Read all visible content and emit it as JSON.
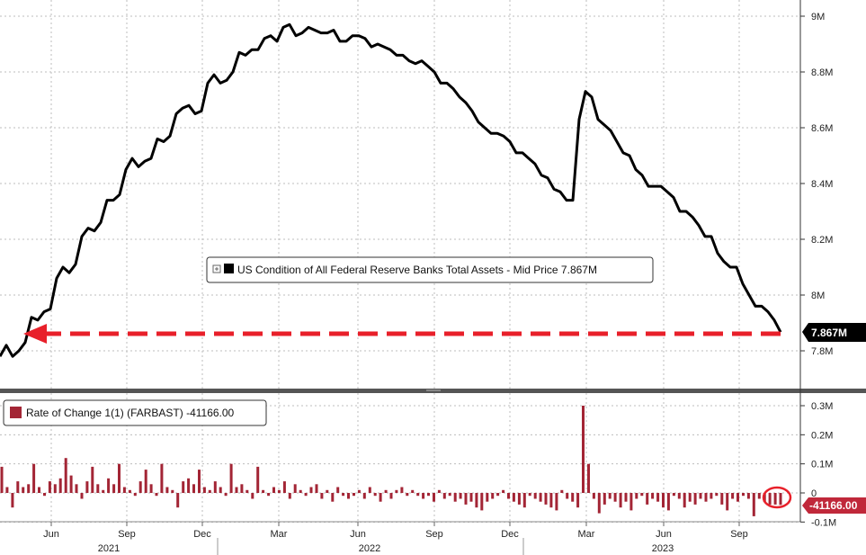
{
  "chart_data": [
    {
      "type": "line",
      "ylim": [
        7.72,
        9.03
      ],
      "y_ticks": [
        "9M",
        "8.8M",
        "8.6M",
        "8.4M",
        "8.2M",
        "8M",
        "7.8M"
      ],
      "y_tick_values": [
        9.0,
        8.8,
        8.6,
        8.4,
        8.2,
        8.0,
        7.8
      ],
      "legend": "US Condition of All Federal Reserve Banks Total Assets - Mid Price 7.867M",
      "last_value_label": "7.867M",
      "grid": true,
      "series": [
        {
          "values": [
            7.78,
            7.82,
            7.78,
            7.8,
            7.83,
            7.92,
            7.91,
            7.94,
            7.95,
            8.06,
            8.1,
            8.08,
            8.11,
            8.21,
            8.24,
            8.23,
            8.26,
            8.34,
            8.34,
            8.36,
            8.45,
            8.49,
            8.46,
            8.48,
            8.49,
            8.56,
            8.55,
            8.57,
            8.65,
            8.67,
            8.68,
            8.65,
            8.66,
            8.76,
            8.79,
            8.76,
            8.77,
            8.8,
            8.87,
            8.86,
            8.88,
            8.88,
            8.92,
            8.93,
            8.91,
            8.96,
            8.97,
            8.93,
            8.94,
            8.96,
            8.95,
            8.94,
            8.94,
            8.95,
            8.91,
            8.91,
            8.93,
            8.93,
            8.92,
            8.89,
            8.9,
            8.89,
            8.88,
            8.86,
            8.86,
            8.84,
            8.83,
            8.84,
            8.82,
            8.8,
            8.76,
            8.76,
            8.74,
            8.71,
            8.69,
            8.66,
            8.62,
            8.6,
            8.58,
            8.58,
            8.57,
            8.55,
            8.51,
            8.51,
            8.49,
            8.47,
            8.43,
            8.42,
            8.38,
            8.37,
            8.34,
            8.34,
            8.63,
            8.73,
            8.71,
            8.63,
            8.61,
            8.59,
            8.55,
            8.51,
            8.5,
            8.45,
            8.43,
            8.39,
            8.39,
            8.39,
            8.37,
            8.35,
            8.3,
            8.3,
            8.28,
            8.25,
            8.21,
            8.21,
            8.15,
            8.12,
            8.1,
            8.1,
            8.04,
            8.0,
            7.96,
            7.96,
            7.94,
            7.91,
            7.867
          ],
          "color": "#000000"
        }
      ]
    },
    {
      "type": "bar",
      "ylim": [
        -0.1,
        0.33
      ],
      "y_ticks": [
        "0.3M",
        "0.2M",
        "0.1M",
        "0",
        "-0.1M"
      ],
      "y_tick_values": [
        0.3,
        0.2,
        0.1,
        0,
        -0.1
      ],
      "legend": "Rate of Change 1(1) (FARBAST) -41166.00",
      "last_value_label": "-41166.00",
      "series": [
        {
          "values": [
            0.09,
            0.02,
            -0.05,
            0.04,
            0.02,
            0.03,
            0.1,
            0.02,
            -0.01,
            0.04,
            0.03,
            0.05,
            0.12,
            0.06,
            0.03,
            -0.02,
            0.04,
            0.09,
            0.03,
            0.01,
            0.05,
            0.03,
            0.1,
            0.02,
            0.01,
            -0.01,
            0.04,
            0.08,
            0.03,
            -0.01,
            0.1,
            0.02,
            0.01,
            -0.05,
            0.04,
            0.05,
            0.03,
            0.08,
            0.02,
            0.01,
            0.04,
            0.02,
            -0.01,
            0.1,
            0.02,
            0.03,
            0.01,
            -0.02,
            0.09,
            0.01,
            -0.01,
            0.02,
            0.01,
            0.04,
            -0.02,
            0.03,
            0.01,
            -0.01,
            0.02,
            0.03,
            -0.02,
            0.01,
            -0.03,
            0.02,
            -0.01,
            -0.02,
            -0.01,
            0.01,
            -0.02,
            0.02,
            -0.01,
            -0.03,
            0.01,
            -0.02,
            0.01,
            0.02,
            -0.01,
            0.01,
            -0.01,
            -0.02,
            -0.01,
            -0.03,
            0.01,
            -0.02,
            -0.01,
            -0.03,
            -0.02,
            -0.04,
            -0.03,
            -0.05,
            -0.06,
            -0.03,
            -0.02,
            -0.01,
            0.01,
            -0.02,
            -0.03,
            -0.04,
            -0.05,
            -0.01,
            -0.02,
            -0.03,
            -0.04,
            -0.05,
            -0.06,
            0.01,
            -0.02,
            -0.03,
            -0.05,
            0.3,
            0.1,
            -0.02,
            -0.07,
            -0.04,
            -0.02,
            -0.03,
            -0.05,
            -0.03,
            -0.06,
            -0.02,
            -0.01,
            -0.04,
            -0.02,
            -0.03,
            -0.05,
            -0.06,
            -0.01,
            -0.02,
            -0.05,
            -0.03,
            -0.04,
            -0.02,
            -0.03,
            -0.02,
            -0.01,
            -0.04,
            -0.06,
            -0.02,
            -0.03,
            -0.01,
            -0.02,
            -0.08,
            -0.02,
            -0.03,
            -0.04,
            -0.04,
            -0.041
          ],
          "color": "#a32535"
        }
      ]
    }
  ],
  "x_axis": {
    "month_labels": [
      "Jun",
      "Sep",
      "Dec",
      "Mar",
      "Jun",
      "Sep",
      "Dec",
      "Mar",
      "Jun",
      "Sep"
    ],
    "year_labels": [
      "2021",
      "2022",
      "2023"
    ]
  },
  "annotation": {
    "arrow_color": "#e8202a",
    "circle_color": "#e8202a"
  },
  "colors": {
    "line": "#000000",
    "bar": "#a32535",
    "badge_bg": "#000000",
    "neg_badge_bg": "#c0283a",
    "grid": "#c8c8c8",
    "panel_divider": "#555555"
  }
}
